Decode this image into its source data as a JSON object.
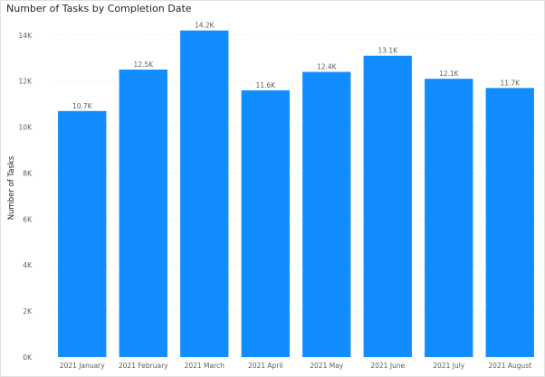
{
  "chart_data": {
    "type": "bar",
    "title": "Number of Tasks by Completion Date",
    "xlabel": "",
    "ylabel": "Number of Tasks",
    "categories": [
      "2021 January",
      "2021 February",
      "2021 March",
      "2021 April",
      "2021 May",
      "2021 June",
      "2021 July",
      "2021 August"
    ],
    "values": [
      10700,
      12500,
      14200,
      11600,
      12400,
      13100,
      12100,
      11700
    ],
    "data_labels": [
      "10.7K",
      "12.5K",
      "14.2K",
      "11.6K",
      "12.4K",
      "13.1K",
      "12.1K",
      "11.7K"
    ],
    "ylim": [
      0,
      14700
    ],
    "yticks": [
      0,
      2000,
      4000,
      6000,
      8000,
      10000,
      12000,
      14000
    ],
    "ytick_labels": [
      "0K",
      "2K",
      "4K",
      "6K",
      "8K",
      "10K",
      "12K",
      "14K"
    ],
    "grid": true,
    "legend": "none",
    "colors": {
      "bar": "#118DFF",
      "grid": "#e9e9e9",
      "text": "#605e5c"
    }
  }
}
